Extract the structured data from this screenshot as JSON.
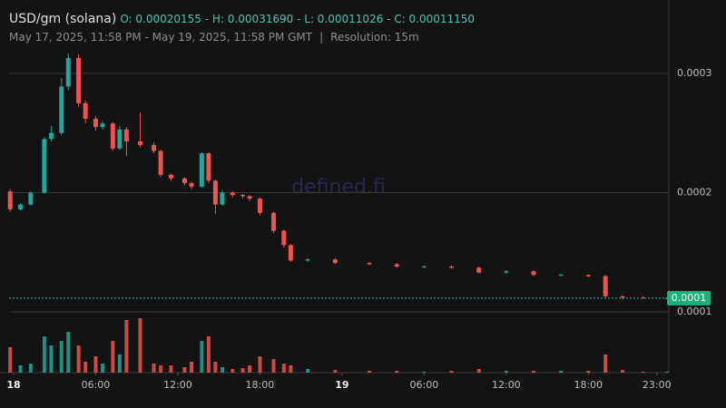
{
  "header": {
    "title": "USD/gm (solana)",
    "ohlc": "O: 0.00020155 - H: 0.00031690 - L: 0.00011026 - C: 0.00011150",
    "range": "May 17, 2025, 11:58 PM - May 19, 2025, 11:58 PM GMT",
    "separator": "|",
    "resolution": "Resolution: 15m"
  },
  "watermark": "defined.fi",
  "chart_data": {
    "type": "candlestick",
    "x": [
      -0.25,
      0.5,
      1.25,
      2.25,
      2.75,
      3.5,
      4,
      4.75,
      5.25,
      6,
      6.5,
      7.25,
      7.75,
      8.25,
      9.25,
      10.25,
      10.75,
      11.5,
      12.5,
      13,
      13.75,
      14.25,
      14.75,
      15.25,
      16,
      16.75,
      17.25,
      18,
      19,
      19.75,
      20.25,
      21.5,
      23.5,
      26,
      28,
      30,
      32,
      34,
      36,
      38,
      40,
      42,
      43.25,
      44.5,
      46,
      47.75
    ],
    "open": [
      0.000201,
      0.000186,
      0.00019,
      0.0002,
      0.000245,
      0.00025,
      0.000289,
      0.000313,
      0.000275,
      0.000262,
      0.000255,
      0.000258,
      0.000237,
      0.000253,
      0.000243,
      0.00024,
      0.000235,
      0.000215,
      0.000212,
      0.000208,
      0.000205,
      0.000233,
      0.00021,
      0.00019,
      0.0002,
      0.000198,
      0.000197,
      0.000195,
      0.000183,
      0.000168,
      0.000156,
      0.000143,
      0.000144,
      0.000141,
      0.00014,
      0.000138,
      0.000138,
      0.000137,
      0.000133,
      0.000134,
      0.000131,
      0.000131,
      0.00013,
      0.000113,
      0.000112,
      0.0001115
    ],
    "high": [
      0.000203,
      0.000191,
      0.000201,
      0.000247,
      0.000256,
      0.000296,
      0.0003169,
      0.000316,
      0.000277,
      0.000264,
      0.00026,
      0.000259,
      0.000256,
      0.000255,
      0.000267,
      0.000242,
      0.000236,
      0.000216,
      0.000213,
      0.000209,
      0.000234,
      0.000234,
      0.000211,
      0.000202,
      0.000201,
      0.000199,
      0.000198,
      0.000196,
      0.000184,
      0.000169,
      0.000157,
      0.000145,
      0.000145,
      0.000142,
      0.000141,
      0.000139,
      0.000139,
      0.000138,
      0.000135,
      0.000135,
      0.000132,
      0.000131,
      0.000131,
      0.000114,
      0.000113,
      0.000112
    ],
    "low": [
      0.000184,
      0.000185,
      0.000189,
      0.000199,
      0.000243,
      0.000248,
      0.000286,
      0.000272,
      0.000258,
      0.000252,
      0.000253,
      0.000235,
      0.000236,
      0.000231,
      0.000238,
      0.000233,
      0.000213,
      0.00021,
      0.000206,
      0.000203,
      0.000204,
      0.000208,
      0.000182,
      0.000189,
      0.000196,
      0.000195,
      0.000193,
      0.000181,
      0.000166,
      0.000154,
      0.000142,
      0.000142,
      0.00014,
      0.000139,
      0.000137,
      0.000137,
      0.000136,
      0.000132,
      0.000132,
      0.00013,
      0.00013,
      0.000129,
      0.000112,
      0.0001103,
      0.000111,
      0.000111
    ],
    "close": [
      0.000186,
      0.00019,
      0.0002,
      0.000245,
      0.00025,
      0.000289,
      0.000313,
      0.000275,
      0.000262,
      0.000255,
      0.000258,
      0.000237,
      0.000253,
      0.000243,
      0.00024,
      0.000235,
      0.000215,
      0.000212,
      0.000208,
      0.000205,
      0.000233,
      0.00021,
      0.00019,
      0.0002,
      0.000198,
      0.000197,
      0.000195,
      0.000183,
      0.000168,
      0.000156,
      0.000143,
      0.000144,
      0.000141,
      0.00014,
      0.000138,
      0.000138,
      0.000137,
      0.000133,
      0.000134,
      0.000131,
      0.000131,
      0.00013,
      0.000113,
      0.000112,
      0.0001115,
      0.0001115
    ],
    "volume": [
      28,
      8,
      10,
      40,
      30,
      35,
      45,
      30,
      12,
      18,
      10,
      35,
      20,
      58,
      60,
      10,
      8,
      8,
      6,
      12,
      35,
      40,
      12,
      6,
      4,
      5,
      8,
      18,
      15,
      10,
      8,
      4,
      3,
      2,
      2,
      1,
      2,
      4,
      2,
      2,
      2,
      2,
      20,
      3,
      1,
      1
    ],
    "up_color": "#26a69a",
    "down_color": "#ef5350",
    "xlim": [
      -0.33,
      47.88
    ],
    "xticks": [
      {
        "value": 0,
        "label": "18"
      },
      {
        "value": 6,
        "label": "06:00"
      },
      {
        "value": 12,
        "label": "12:00"
      },
      {
        "value": 18,
        "label": "18:00"
      },
      {
        "value": 24,
        "label": "19"
      },
      {
        "value": 30,
        "label": "06:00"
      },
      {
        "value": 36,
        "label": "12:00"
      },
      {
        "value": 42,
        "label": "18:00"
      },
      {
        "value": 47,
        "label": "23:00"
      }
    ],
    "ylim": [
      4.9e-05,
      0.000354
    ],
    "yticks": [
      0.0003,
      0.0002,
      0.0001
    ],
    "grid": true,
    "last_price": {
      "value": 0.0001115,
      "label": "0.0001"
    }
  }
}
